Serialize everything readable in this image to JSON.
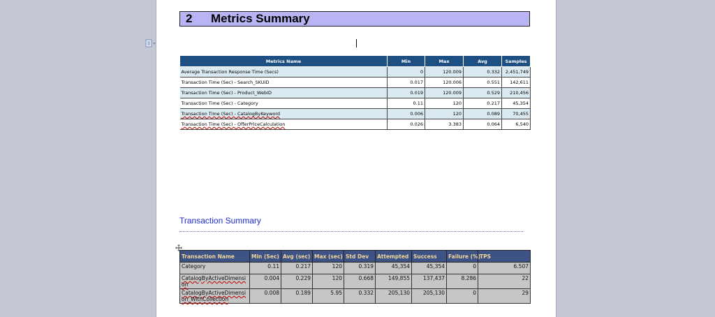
{
  "heading": {
    "number": "2",
    "title": "Metrics Summary"
  },
  "metrics_table": {
    "headers": [
      "Metrics Name",
      "Min",
      "Max",
      "Avg",
      "Samples"
    ],
    "rows": [
      [
        "Average Transaction Response Time (Secs)",
        "0",
        "120.009",
        "0.332",
        "2,451,749"
      ],
      [
        "Transaction Time (Sec) - Search_SKUID",
        "0.017",
        "120.006",
        "0.551",
        "142,611"
      ],
      [
        "Transaction Time (Sec) - Product_WebID",
        "0.019",
        "120.009",
        "0.529",
        "210,456"
      ],
      [
        "Transaction Time (Sec) - Category",
        "0.11",
        "120",
        "0.217",
        "45,354"
      ],
      [
        "Transaction Time (Sec) - CatalogByKeyword",
        "0.006",
        "120",
        "0.089",
        "70,455"
      ],
      [
        "Transaction Time (Sec) - OfferPriceCalculation",
        "0.026",
        "3.383",
        "0.064",
        "6,540"
      ]
    ]
  },
  "transaction_summary": {
    "title": "Transaction Summary",
    "headers": [
      "Transaction Name",
      "Min (Sec)",
      "Avg (sec)",
      "Max (sec)",
      "Std Dev",
      "Attempted",
      "Success",
      "Failure (%)",
      "TPS"
    ],
    "rows": [
      [
        "Category",
        "0.11",
        "0.217",
        "120",
        "0.319",
        "45,354",
        "45,354",
        "0",
        "6.507"
      ],
      [
        "CatalogByActiveDimension",
        "0.004",
        "0.229",
        "120",
        "0.668",
        "149,855",
        "137,437",
        "8.286",
        "22"
      ],
      [
        "CatalogByActiveDimension_WithCollection",
        "0.008",
        "0.189",
        "5.95",
        "0.332",
        "205,130",
        "205,130",
        "0",
        "29"
      ]
    ]
  },
  "colors": {
    "heading_bg": "#b9b4f4",
    "metrics_header_bg": "#1e4f82",
    "trans_header_bg": "#3d5386",
    "link_blue": "#1f2ad6"
  }
}
